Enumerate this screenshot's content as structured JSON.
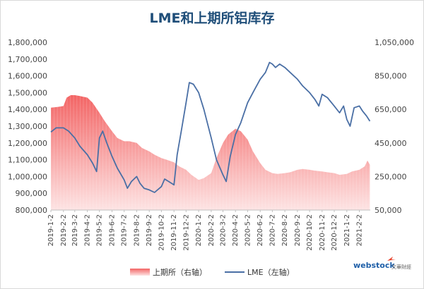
{
  "chart_data": {
    "type": "line",
    "title": "LME和上期所铝库存",
    "x_ticks": [
      "2019-1-2",
      "2019-2-2",
      "2019-3-2",
      "2019-4-2",
      "2019-5-2",
      "2019-6-2",
      "2019-7-2",
      "2019-8-2",
      "2019-9-2",
      "2019-10-2",
      "2019-11-2",
      "2019-12-2",
      "2020-1-2",
      "2020-2-2",
      "2020-3-2",
      "2020-4-2",
      "2020-5-2",
      "2020-6-2",
      "2020-7-2",
      "2020-8-2",
      "2020-9-2",
      "2020-10-2",
      "2020-11-2",
      "2020-12-2",
      "2021-1-2",
      "2021-2-2"
    ],
    "y_left": {
      "min": 800000,
      "max": 1800000,
      "step": 100000,
      "ticks": [
        "800,000",
        "900,000",
        "1,000,000",
        "1,100,000",
        "1,200,000",
        "1,300,000",
        "1,400,000",
        "1,500,000",
        "1,600,000",
        "1,700,000",
        "1,800,000"
      ]
    },
    "y_right": {
      "min": 50000,
      "max": 1050000,
      "step": 200000,
      "ticks": [
        "50,000",
        "250,000",
        "450,000",
        "650,000",
        "850,000",
        "1,050,000"
      ]
    },
    "series": [
      {
        "name": "上期所（右轴）",
        "type": "area",
        "axis": "right",
        "color": "#f46a6a",
        "points": [
          [
            "2019-1-2",
            660000
          ],
          [
            "2019-1-20",
            665000
          ],
          [
            "2019-2-2",
            670000
          ],
          [
            "2019-2-10",
            720000
          ],
          [
            "2019-2-20",
            735000
          ],
          [
            "2019-3-2",
            735000
          ],
          [
            "2019-3-15",
            730000
          ],
          [
            "2019-4-2",
            720000
          ],
          [
            "2019-4-15",
            690000
          ],
          [
            "2019-5-2",
            630000
          ],
          [
            "2019-5-15",
            580000
          ],
          [
            "2019-6-2",
            520000
          ],
          [
            "2019-6-15",
            480000
          ],
          [
            "2019-7-2",
            460000
          ],
          [
            "2019-7-15",
            460000
          ],
          [
            "2019-8-2",
            450000
          ],
          [
            "2019-8-15",
            420000
          ],
          [
            "2019-9-2",
            400000
          ],
          [
            "2019-9-15",
            380000
          ],
          [
            "2019-10-2",
            360000
          ],
          [
            "2019-10-15",
            350000
          ],
          [
            "2019-11-2",
            335000
          ],
          [
            "2019-11-15",
            310000
          ],
          [
            "2019-12-2",
            290000
          ],
          [
            "2019-12-15",
            260000
          ],
          [
            "2020-1-2",
            230000
          ],
          [
            "2020-1-15",
            240000
          ],
          [
            "2020-2-2",
            270000
          ],
          [
            "2020-2-15",
            360000
          ],
          [
            "2020-3-2",
            450000
          ],
          [
            "2020-3-15",
            500000
          ],
          [
            "2020-4-2",
            535000
          ],
          [
            "2020-4-15",
            520000
          ],
          [
            "2020-5-2",
            470000
          ],
          [
            "2020-5-15",
            400000
          ],
          [
            "2020-6-2",
            330000
          ],
          [
            "2020-6-15",
            290000
          ],
          [
            "2020-7-2",
            270000
          ],
          [
            "2020-7-15",
            265000
          ],
          [
            "2020-8-2",
            270000
          ],
          [
            "2020-8-15",
            275000
          ],
          [
            "2020-9-2",
            290000
          ],
          [
            "2020-9-15",
            295000
          ],
          [
            "2020-10-2",
            290000
          ],
          [
            "2020-10-15",
            285000
          ],
          [
            "2020-11-2",
            280000
          ],
          [
            "2020-11-15",
            275000
          ],
          [
            "2020-12-2",
            270000
          ],
          [
            "2020-12-15",
            260000
          ],
          [
            "2021-1-2",
            265000
          ],
          [
            "2021-1-15",
            280000
          ],
          [
            "2021-2-2",
            290000
          ],
          [
            "2021-2-15",
            310000
          ],
          [
            "2021-2-22",
            345000
          ],
          [
            "2021-2-28",
            320000
          ]
        ]
      },
      {
        "name": "LME（左轴）",
        "type": "line",
        "axis": "left",
        "color": "#4a6fa5",
        "points": [
          [
            "2019-1-2",
            1265000
          ],
          [
            "2019-1-15",
            1290000
          ],
          [
            "2019-2-2",
            1290000
          ],
          [
            "2019-2-15",
            1270000
          ],
          [
            "2019-3-2",
            1230000
          ],
          [
            "2019-3-15",
            1180000
          ],
          [
            "2019-4-2",
            1130000
          ],
          [
            "2019-4-15",
            1080000
          ],
          [
            "2019-4-25",
            1030000
          ],
          [
            "2019-5-2",
            1230000
          ],
          [
            "2019-5-10",
            1270000
          ],
          [
            "2019-5-20",
            1200000
          ],
          [
            "2019-6-2",
            1120000
          ],
          [
            "2019-6-15",
            1050000
          ],
          [
            "2019-7-2",
            980000
          ],
          [
            "2019-7-10",
            930000
          ],
          [
            "2019-7-20",
            970000
          ],
          [
            "2019-8-2",
            1000000
          ],
          [
            "2019-8-10",
            960000
          ],
          [
            "2019-8-20",
            930000
          ],
          [
            "2019-9-2",
            920000
          ],
          [
            "2019-9-15",
            905000
          ],
          [
            "2019-10-2",
            940000
          ],
          [
            "2019-10-10",
            985000
          ],
          [
            "2019-10-20",
            970000
          ],
          [
            "2019-11-2",
            950000
          ],
          [
            "2019-11-10",
            1130000
          ],
          [
            "2019-11-20",
            1270000
          ],
          [
            "2019-12-2",
            1440000
          ],
          [
            "2019-12-10",
            1560000
          ],
          [
            "2019-12-20",
            1550000
          ],
          [
            "2020-1-2",
            1500000
          ],
          [
            "2020-1-15",
            1400000
          ],
          [
            "2020-2-2",
            1230000
          ],
          [
            "2020-2-15",
            1100000
          ],
          [
            "2020-3-2",
            1010000
          ],
          [
            "2020-3-10",
            970000
          ],
          [
            "2020-3-20",
            1120000
          ],
          [
            "2020-4-2",
            1250000
          ],
          [
            "2020-4-15",
            1320000
          ],
          [
            "2020-5-2",
            1440000
          ],
          [
            "2020-5-15",
            1500000
          ],
          [
            "2020-6-2",
            1580000
          ],
          [
            "2020-6-15",
            1620000
          ],
          [
            "2020-6-25",
            1680000
          ],
          [
            "2020-7-2",
            1670000
          ],
          [
            "2020-7-10",
            1650000
          ],
          [
            "2020-7-20",
            1670000
          ],
          [
            "2020-8-2",
            1650000
          ],
          [
            "2020-8-15",
            1620000
          ],
          [
            "2020-9-2",
            1580000
          ],
          [
            "2020-9-15",
            1540000
          ],
          [
            "2020-10-2",
            1500000
          ],
          [
            "2020-10-15",
            1460000
          ],
          [
            "2020-10-25",
            1420000
          ],
          [
            "2020-11-2",
            1490000
          ],
          [
            "2020-11-15",
            1470000
          ],
          [
            "2020-12-2",
            1420000
          ],
          [
            "2020-12-15",
            1380000
          ],
          [
            "2020-12-25",
            1420000
          ],
          [
            "2021-1-2",
            1340000
          ],
          [
            "2021-1-10",
            1300000
          ],
          [
            "2021-1-20",
            1410000
          ],
          [
            "2021-2-2",
            1420000
          ],
          [
            "2021-2-10",
            1390000
          ],
          [
            "2021-2-20",
            1360000
          ],
          [
            "2021-2-28",
            1330000
          ]
        ]
      }
    ],
    "legend": {
      "position": "bottom"
    },
    "grid": false
  },
  "legend": {
    "area_label": "上期所（右轴）",
    "line_label": "LME（左轴）"
  },
  "watermark": {
    "logo_text": "webstock",
    "sub_text": "文華財經"
  }
}
